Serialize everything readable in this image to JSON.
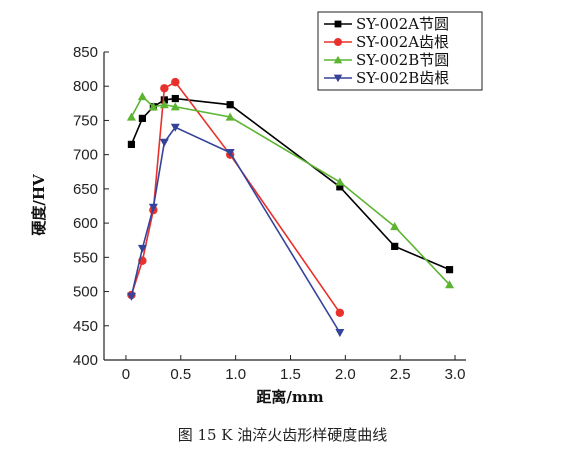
{
  "caption": "图 15 K 油淬火齿形样硬度曲线",
  "chart_data": {
    "type": "line",
    "title": "",
    "xlabel": "距离/mm",
    "ylabel": "硬度/HV",
    "xlim": [
      -0.2,
      3.1
    ],
    "ylim": [
      400,
      850
    ],
    "xticks": [
      "0",
      "0.5",
      "1.0",
      "1.5",
      "2.0",
      "2.5",
      "3.0"
    ],
    "yticks": [
      "400",
      "450",
      "500",
      "550",
      "600",
      "650",
      "700",
      "750",
      "800",
      "850"
    ],
    "grid": false,
    "legend_position": "top-right",
    "series": [
      {
        "name": "SY-002A节圆",
        "color": "#000000",
        "marker": "square",
        "x": [
          0.05,
          0.15,
          0.25,
          0.35,
          0.45,
          0.95,
          1.95,
          2.45,
          2.95
        ],
        "y": [
          715,
          753,
          770,
          780,
          782,
          773,
          653,
          566,
          532
        ]
      },
      {
        "name": "SY-002A齿根",
        "color": "#e8312b",
        "marker": "circle",
        "x": [
          0.05,
          0.15,
          0.25,
          0.35,
          0.45,
          0.95,
          1.95
        ],
        "y": [
          495,
          545,
          619,
          797,
          806,
          700,
          469
        ]
      },
      {
        "name": "SY-002B节圆",
        "color": "#5bb531",
        "marker": "triangle-up",
        "x": [
          0.05,
          0.15,
          0.25,
          0.35,
          0.45,
          0.95,
          1.95,
          2.45,
          2.95
        ],
        "y": [
          755,
          785,
          770,
          773,
          770,
          755,
          660,
          595,
          510
        ]
      },
      {
        "name": "SY-002B齿根",
        "color": "#36439a",
        "marker": "triangle-down",
        "x": [
          0.05,
          0.15,
          0.25,
          0.35,
          0.45,
          0.95,
          1.95
        ],
        "y": [
          493,
          563,
          623,
          718,
          740,
          703,
          440
        ]
      }
    ]
  }
}
